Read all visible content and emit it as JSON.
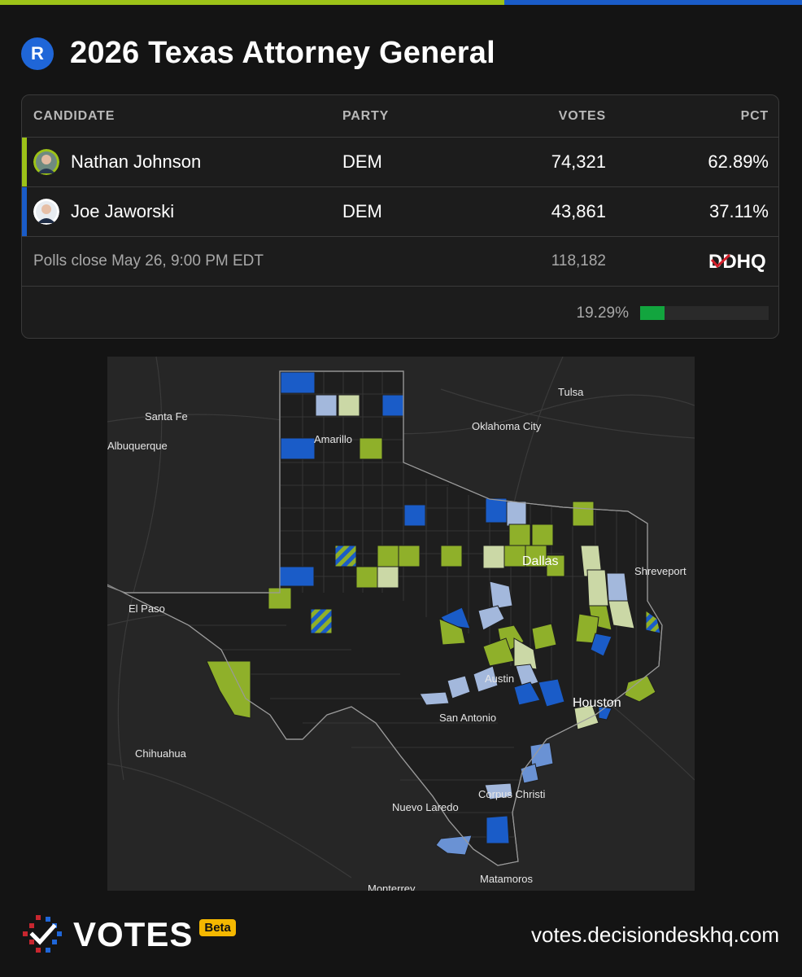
{
  "header": {
    "party_badge": "R",
    "title": "2026 Texas Attorney General"
  },
  "colors": {
    "johnson": "#9dc318",
    "jaworski": "#1a5cc8",
    "progress": "#12a53e",
    "background": "#141414"
  },
  "table": {
    "columns": {
      "candidate": "CANDIDATE",
      "party": "PARTY",
      "votes": "VOTES",
      "pct": "PCT"
    },
    "candidates": [
      {
        "name": "Nathan Johnson",
        "party": "DEM",
        "votes": "74,321",
        "pct": "62.89%",
        "color": "#9dc318",
        "avatar_icon": "candidate-photo-icon"
      },
      {
        "name": "Joe Jaworski",
        "party": "DEM",
        "votes": "43,861",
        "pct": "37.11%",
        "color": "#1a5cc8",
        "avatar_icon": "candidate-photo-icon"
      }
    ],
    "footer": {
      "polls_close": "Polls close May 26, 9:00 PM EDT",
      "total_votes": "118,182",
      "source_logo": "DDHQ"
    },
    "reporting": {
      "pct_label": "19.29%",
      "fraction": 0.1929
    }
  },
  "map": {
    "cities": [
      "Tulsa",
      "Santa Fe",
      "Oklahoma City",
      "Albuquerque",
      "Amarillo",
      "Dallas",
      "Shreveport",
      "El Paso",
      "Austin",
      "Houston",
      "San Antonio",
      "Chihuahua",
      "Corpus Christi",
      "Nuevo Laredo",
      "Matamoros",
      "Monterrey"
    ],
    "legend_colors": {
      "johnson_strong": "#8fb02a",
      "johnson_lean": "#cbd8a6",
      "jaworski_strong": "#1a5cc8",
      "jaworski_lean": "#a3b8dc"
    }
  },
  "footer": {
    "brand": "VOTES",
    "beta": "Beta",
    "site": "votes.decisiondeskhq.com"
  }
}
